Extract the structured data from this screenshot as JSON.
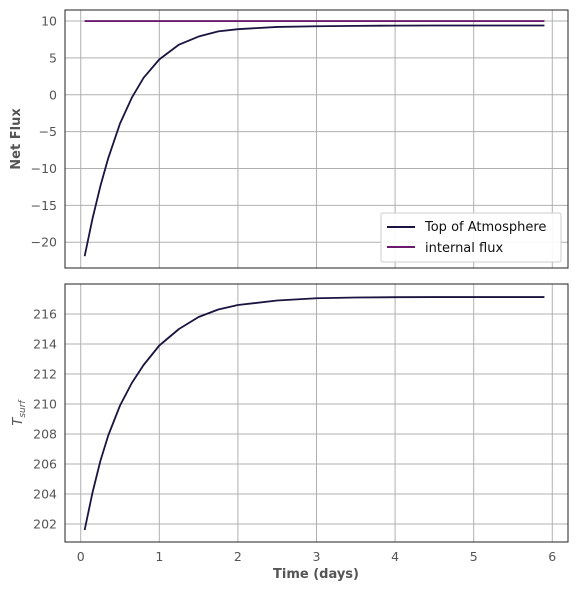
{
  "chart_data": [
    {
      "type": "line",
      "title": "",
      "xlabel": "",
      "ylabel": "Net Flux",
      "xlim": [
        -0.2,
        6.2
      ],
      "ylim": [
        -23.5,
        11.5
      ],
      "xticks": [
        0,
        1,
        2,
        3,
        4,
        5,
        6
      ],
      "yticks": [
        -20,
        -15,
        -10,
        -5,
        0,
        5,
        10
      ],
      "ytick_labels": [
        "−20",
        "−15",
        "−10",
        "−5",
        "0",
        "5",
        "10"
      ],
      "grid": true,
      "legend_position": "bottom-right",
      "series": [
        {
          "name": "Top of Atmosphere",
          "color": "#1b1440",
          "x": [
            0.05,
            0.15,
            0.25,
            0.35,
            0.5,
            0.65,
            0.8,
            1.0,
            1.25,
            1.5,
            1.75,
            2.0,
            2.5,
            3.0,
            3.5,
            4.0,
            4.5,
            5.0,
            5.5,
            5.9
          ],
          "y": [
            -21.9,
            -16.8,
            -12.4,
            -8.6,
            -3.9,
            -0.4,
            2.3,
            4.8,
            6.8,
            7.9,
            8.6,
            8.9,
            9.2,
            9.3,
            9.35,
            9.38,
            9.4,
            9.4,
            9.4,
            9.4
          ]
        },
        {
          "name": "internal flux",
          "color": "#6b1a6e",
          "x": [
            0.05,
            5.9
          ],
          "y": [
            10,
            10
          ]
        }
      ]
    },
    {
      "type": "line",
      "title": "",
      "xlabel": "Time (days)",
      "ylabel_main": "T",
      "ylabel_sub": "surf",
      "xlim": [
        -0.2,
        6.2
      ],
      "ylim": [
        200.8,
        218.0
      ],
      "xticks": [
        0,
        1,
        2,
        3,
        4,
        5,
        6
      ],
      "yticks": [
        202,
        204,
        206,
        208,
        210,
        212,
        214,
        216
      ],
      "grid": true,
      "series": [
        {
          "color": "#1b1440",
          "x": [
            0.05,
            0.15,
            0.25,
            0.35,
            0.5,
            0.65,
            0.8,
            1.0,
            1.25,
            1.5,
            1.75,
            2.0,
            2.5,
            3.0,
            3.5,
            4.0,
            4.5,
            5.0,
            5.5,
            5.9
          ],
          "y": [
            201.6,
            204.1,
            206.2,
            207.9,
            209.9,
            211.4,
            212.6,
            213.9,
            215.0,
            215.8,
            216.3,
            216.6,
            216.9,
            217.05,
            217.1,
            217.12,
            217.13,
            217.13,
            217.13,
            217.13
          ]
        }
      ]
    }
  ]
}
